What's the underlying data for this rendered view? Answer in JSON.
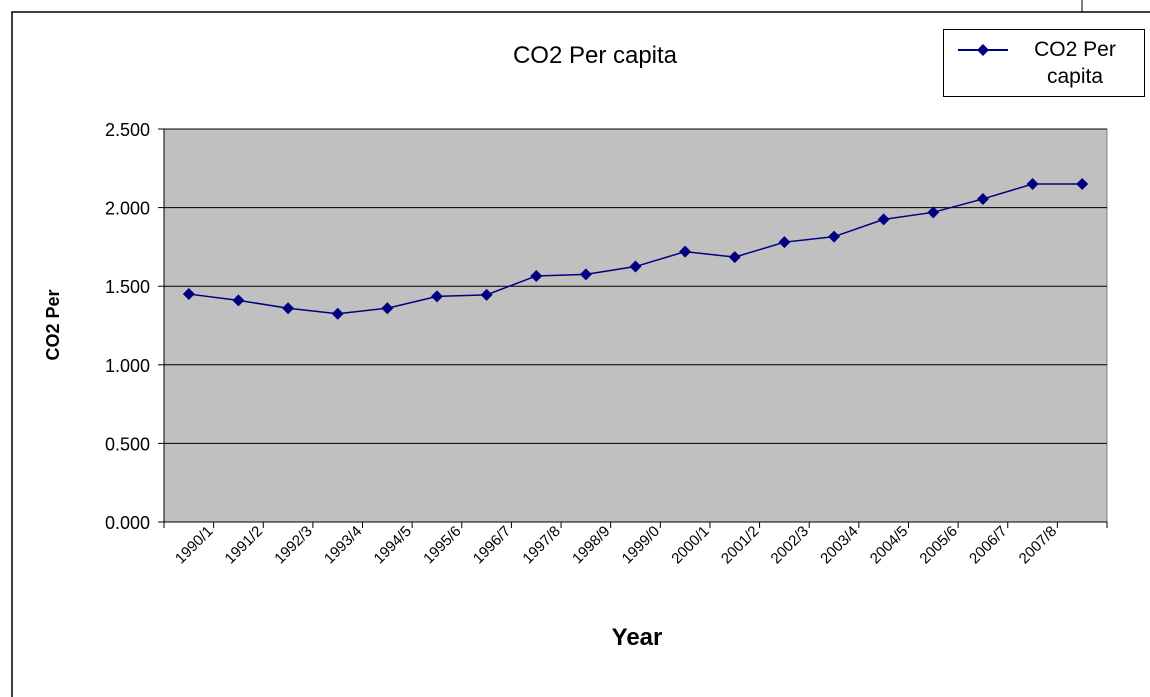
{
  "chart_data": {
    "type": "line",
    "title": "CO2 Per capita",
    "xlabel": "Year",
    "ylabel": "CO2 Per",
    "categories": [
      "1990/1",
      "1991/2",
      "1992/3",
      "1993/4",
      "1994/5",
      "1995/6",
      "1996/7",
      "1997/8",
      "1998/9",
      "1999/0",
      "2000/1",
      "2001/2",
      "2002/3",
      "2003/4",
      "2004/5",
      "2005/6",
      "2006/7",
      "2007/8",
      ""
    ],
    "series": [
      {
        "name": "CO2 Per capita",
        "color": "#000080",
        "values": [
          1.45,
          1.41,
          1.36,
          1.325,
          1.36,
          1.435,
          1.445,
          1.565,
          1.575,
          1.625,
          1.72,
          1.685,
          1.78,
          1.815,
          1.925,
          1.97,
          2.055,
          2.15,
          2.15
        ]
      }
    ],
    "ylim": [
      0,
      2.5
    ],
    "yticks": [
      "0.000",
      "0.500",
      "1.000",
      "1.500",
      "2.000",
      "2.500"
    ],
    "plot_background": "#c0c0c0",
    "grid": "horizontal",
    "legend_position": "top-right"
  }
}
